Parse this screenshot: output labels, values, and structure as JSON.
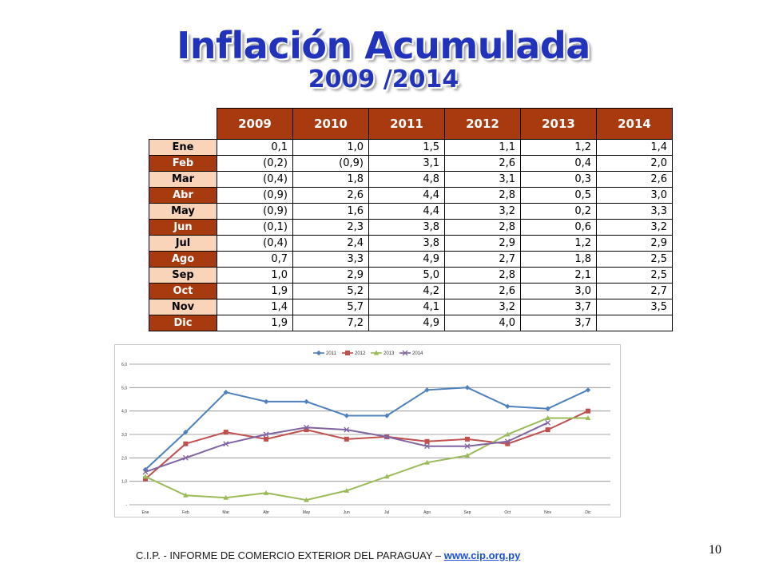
{
  "slide": {
    "title": "Inflación Acumulada",
    "subtitle": "2009 /2014",
    "footer_prefix": "C.I.P. - INFORME DE COMERCIO EXTERIOR DEL PARAGUAY – ",
    "footer_link": "www.cip.org.py",
    "page_number": "10"
  },
  "table": {
    "columns": [
      "2009",
      "2010",
      "2011",
      "2012",
      "2013",
      "2014"
    ],
    "rows": [
      {
        "month": "Ene",
        "style": "light",
        "values": [
          "0,1",
          "1,0",
          "1,5",
          "1,1",
          "1,2",
          "1,4"
        ]
      },
      {
        "month": "Feb",
        "style": "dark",
        "values": [
          "(0,2)",
          "(0,9)",
          "3,1",
          "2,6",
          "0,4",
          "2,0"
        ]
      },
      {
        "month": "Mar",
        "style": "light",
        "values": [
          "(0,4)",
          "1,8",
          "4,8",
          "3,1",
          "0,3",
          "2,6"
        ]
      },
      {
        "month": "Abr",
        "style": "dark",
        "values": [
          "(0,9)",
          "2,6",
          "4,4",
          "2,8",
          "0,5",
          "3,0"
        ]
      },
      {
        "month": "May",
        "style": "light",
        "values": [
          "(0,9)",
          "1,6",
          "4,4",
          "3,2",
          "0,2",
          "3,3"
        ]
      },
      {
        "month": "Jun",
        "style": "dark",
        "values": [
          "(0,1)",
          "2,3",
          "3,8",
          "2,8",
          "0,6",
          "3,2"
        ]
      },
      {
        "month": "Jul",
        "style": "light",
        "values": [
          "(0,4)",
          "2,4",
          "3,8",
          "2,9",
          "1,2",
          "2,9"
        ]
      },
      {
        "month": "Ago",
        "style": "dark",
        "values": [
          "0,7",
          "3,3",
          "4,9",
          "2,7",
          "1,8",
          "2,5"
        ]
      },
      {
        "month": "Sep",
        "style": "light",
        "values": [
          "1,0",
          "2,9",
          "5,0",
          "2,8",
          "2,1",
          "2,5"
        ]
      },
      {
        "month": "Oct",
        "style": "dark",
        "values": [
          "1,9",
          "5,2",
          "4,2",
          "2,6",
          "3,0",
          "2,7"
        ]
      },
      {
        "month": "Nov",
        "style": "light",
        "values": [
          "1,4",
          "5,7",
          "4,1",
          "3,2",
          "3,7",
          "3,5"
        ]
      },
      {
        "month": "Dic",
        "style": "dark",
        "values": [
          "1,9",
          "7,2",
          "4,9",
          "4,0",
          "3,7",
          ""
        ]
      }
    ]
  },
  "chart_data": {
    "type": "line",
    "categories": [
      "Ene",
      "Feb",
      "Mar",
      "Abr",
      "May",
      "Jun",
      "Jul",
      "Ago",
      "Sep",
      "Oct",
      "Nov",
      "Dic"
    ],
    "series": [
      {
        "name": "2011",
        "color": "#4f81bd",
        "marker": "diamond",
        "values": [
          1.5,
          3.1,
          4.8,
          4.4,
          4.4,
          3.8,
          3.8,
          4.9,
          5.0,
          4.2,
          4.1,
          4.9
        ]
      },
      {
        "name": "2012",
        "color": "#c0504d",
        "marker": "square",
        "values": [
          1.1,
          2.6,
          3.1,
          2.8,
          3.2,
          2.8,
          2.9,
          2.7,
          2.8,
          2.6,
          3.2,
          4.0
        ]
      },
      {
        "name": "2013",
        "color": "#9bbb59",
        "marker": "triangle",
        "values": [
          1.2,
          0.4,
          0.3,
          0.5,
          0.2,
          0.6,
          1.2,
          1.8,
          2.1,
          3.0,
          3.7,
          3.7
        ]
      },
      {
        "name": "2014",
        "color": "#8064a2",
        "marker": "x",
        "values": [
          1.4,
          2.0,
          2.6,
          3.0,
          3.3,
          3.2,
          2.9,
          2.5,
          2.5,
          2.7,
          3.5,
          null
        ]
      }
    ],
    "y_ticks": [
      "-",
      "1,0",
      "2,0",
      "3,0",
      "4,0",
      "5,0",
      "6,0"
    ],
    "ylim": [
      0,
      6
    ],
    "grid": true,
    "legend": "top",
    "title": "",
    "xlabel": "",
    "ylabel": ""
  }
}
